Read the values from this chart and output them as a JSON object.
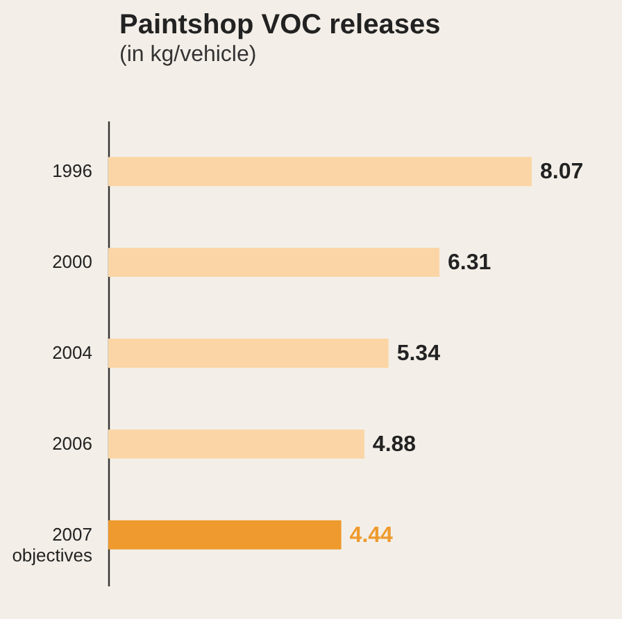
{
  "chart_data": {
    "type": "bar",
    "orientation": "horizontal",
    "title": "Paintshop VOC releases",
    "subtitle": "(in kg/vehicle)",
    "categories": [
      "1996",
      "2000",
      "2004",
      "2006",
      "2007 objectives"
    ],
    "values": [
      8.07,
      6.31,
      5.34,
      4.88,
      4.44
    ],
    "colors": [
      "#fbd5a5",
      "#fbd5a5",
      "#fbd5a5",
      "#fbd5a5",
      "#ee9a2e"
    ],
    "data_labels": true
  }
}
